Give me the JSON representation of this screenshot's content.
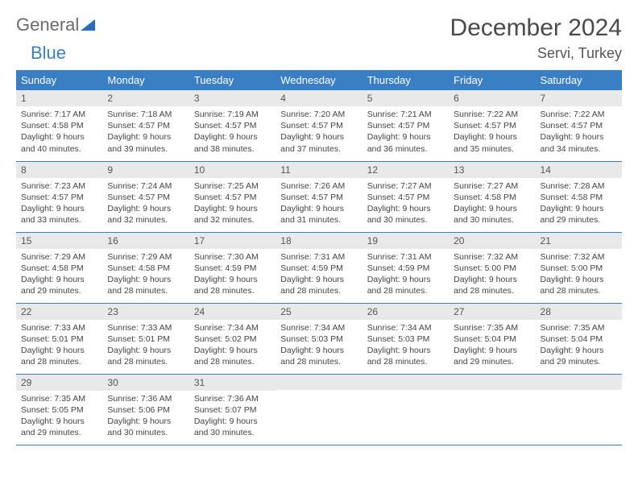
{
  "brand": {
    "part1": "General",
    "part2": "Blue"
  },
  "title": "December 2024",
  "location": "Servi, Turkey",
  "colors": {
    "header_bg": "#3a7fc4",
    "header_text": "#ffffff",
    "daynum_bg": "#e9e9e9",
    "text": "#444444",
    "border": "#3a7fc4"
  },
  "weekdays": [
    "Sunday",
    "Monday",
    "Tuesday",
    "Wednesday",
    "Thursday",
    "Friday",
    "Saturday"
  ],
  "days": [
    {
      "n": "1",
      "sunrise": "7:17 AM",
      "sunset": "4:58 PM",
      "dl": "9 hours and 40 minutes."
    },
    {
      "n": "2",
      "sunrise": "7:18 AM",
      "sunset": "4:57 PM",
      "dl": "9 hours and 39 minutes."
    },
    {
      "n": "3",
      "sunrise": "7:19 AM",
      "sunset": "4:57 PM",
      "dl": "9 hours and 38 minutes."
    },
    {
      "n": "4",
      "sunrise": "7:20 AM",
      "sunset": "4:57 PM",
      "dl": "9 hours and 37 minutes."
    },
    {
      "n": "5",
      "sunrise": "7:21 AM",
      "sunset": "4:57 PM",
      "dl": "9 hours and 36 minutes."
    },
    {
      "n": "6",
      "sunrise": "7:22 AM",
      "sunset": "4:57 PM",
      "dl": "9 hours and 35 minutes."
    },
    {
      "n": "7",
      "sunrise": "7:22 AM",
      "sunset": "4:57 PM",
      "dl": "9 hours and 34 minutes."
    },
    {
      "n": "8",
      "sunrise": "7:23 AM",
      "sunset": "4:57 PM",
      "dl": "9 hours and 33 minutes."
    },
    {
      "n": "9",
      "sunrise": "7:24 AM",
      "sunset": "4:57 PM",
      "dl": "9 hours and 32 minutes."
    },
    {
      "n": "10",
      "sunrise": "7:25 AM",
      "sunset": "4:57 PM",
      "dl": "9 hours and 32 minutes."
    },
    {
      "n": "11",
      "sunrise": "7:26 AM",
      "sunset": "4:57 PM",
      "dl": "9 hours and 31 minutes."
    },
    {
      "n": "12",
      "sunrise": "7:27 AM",
      "sunset": "4:57 PM",
      "dl": "9 hours and 30 minutes."
    },
    {
      "n": "13",
      "sunrise": "7:27 AM",
      "sunset": "4:58 PM",
      "dl": "9 hours and 30 minutes."
    },
    {
      "n": "14",
      "sunrise": "7:28 AM",
      "sunset": "4:58 PM",
      "dl": "9 hours and 29 minutes."
    },
    {
      "n": "15",
      "sunrise": "7:29 AM",
      "sunset": "4:58 PM",
      "dl": "9 hours and 29 minutes."
    },
    {
      "n": "16",
      "sunrise": "7:29 AM",
      "sunset": "4:58 PM",
      "dl": "9 hours and 28 minutes."
    },
    {
      "n": "17",
      "sunrise": "7:30 AM",
      "sunset": "4:59 PM",
      "dl": "9 hours and 28 minutes."
    },
    {
      "n": "18",
      "sunrise": "7:31 AM",
      "sunset": "4:59 PM",
      "dl": "9 hours and 28 minutes."
    },
    {
      "n": "19",
      "sunrise": "7:31 AM",
      "sunset": "4:59 PM",
      "dl": "9 hours and 28 minutes."
    },
    {
      "n": "20",
      "sunrise": "7:32 AM",
      "sunset": "5:00 PM",
      "dl": "9 hours and 28 minutes."
    },
    {
      "n": "21",
      "sunrise": "7:32 AM",
      "sunset": "5:00 PM",
      "dl": "9 hours and 28 minutes."
    },
    {
      "n": "22",
      "sunrise": "7:33 AM",
      "sunset": "5:01 PM",
      "dl": "9 hours and 28 minutes."
    },
    {
      "n": "23",
      "sunrise": "7:33 AM",
      "sunset": "5:01 PM",
      "dl": "9 hours and 28 minutes."
    },
    {
      "n": "24",
      "sunrise": "7:34 AM",
      "sunset": "5:02 PM",
      "dl": "9 hours and 28 minutes."
    },
    {
      "n": "25",
      "sunrise": "7:34 AM",
      "sunset": "5:03 PM",
      "dl": "9 hours and 28 minutes."
    },
    {
      "n": "26",
      "sunrise": "7:34 AM",
      "sunset": "5:03 PM",
      "dl": "9 hours and 28 minutes."
    },
    {
      "n": "27",
      "sunrise": "7:35 AM",
      "sunset": "5:04 PM",
      "dl": "9 hours and 29 minutes."
    },
    {
      "n": "28",
      "sunrise": "7:35 AM",
      "sunset": "5:04 PM",
      "dl": "9 hours and 29 minutes."
    },
    {
      "n": "29",
      "sunrise": "7:35 AM",
      "sunset": "5:05 PM",
      "dl": "9 hours and 29 minutes."
    },
    {
      "n": "30",
      "sunrise": "7:36 AM",
      "sunset": "5:06 PM",
      "dl": "9 hours and 30 minutes."
    },
    {
      "n": "31",
      "sunrise": "7:36 AM",
      "sunset": "5:07 PM",
      "dl": "9 hours and 30 minutes."
    }
  ]
}
